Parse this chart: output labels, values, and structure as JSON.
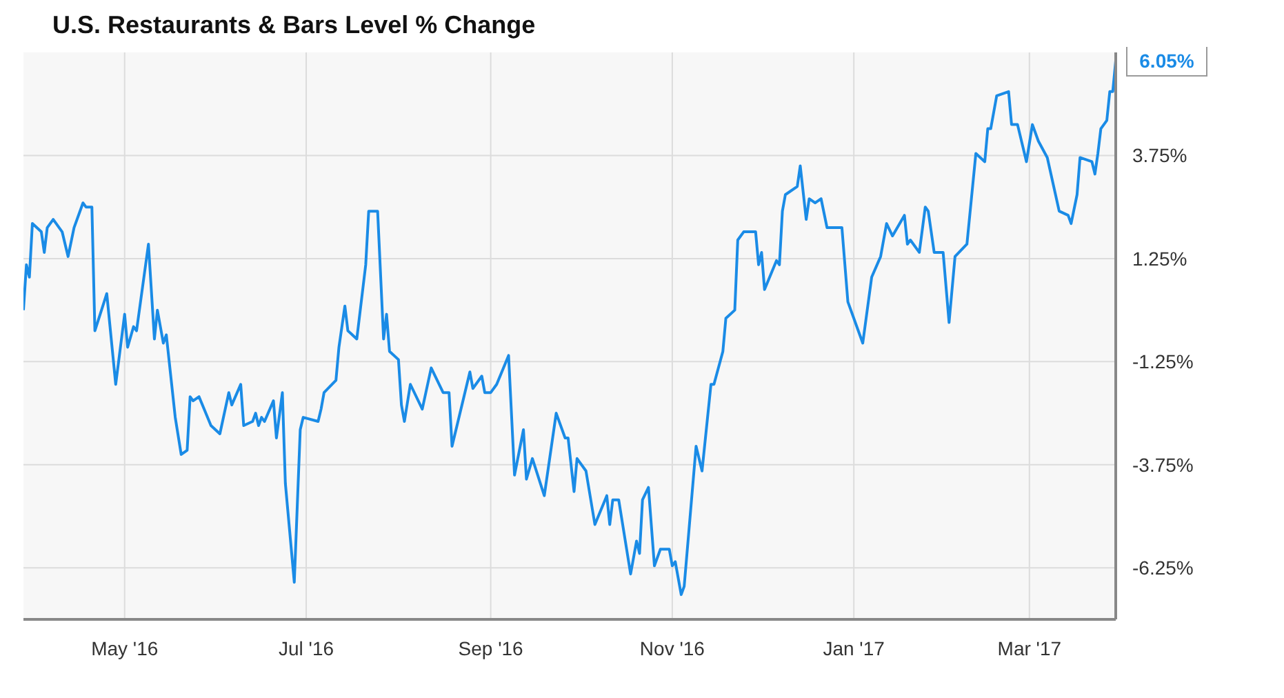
{
  "chart_data": {
    "type": "line",
    "title": "U.S. Restaurants & Bars Level % Change",
    "x": [
      "2016-03-28",
      "2016-03-29",
      "2016-03-30",
      "2016-03-31",
      "2016-04-03",
      "2016-04-04",
      "2016-04-05",
      "2016-04-07",
      "2016-04-10",
      "2016-04-12",
      "2016-04-14",
      "2016-04-17",
      "2016-04-18",
      "2016-04-20",
      "2016-04-21",
      "2016-04-25",
      "2016-04-28",
      "2016-05-01",
      "2016-05-02",
      "2016-05-04",
      "2016-05-05",
      "2016-05-09",
      "2016-05-11",
      "2016-05-12",
      "2016-05-14",
      "2016-05-15",
      "2016-05-18",
      "2016-05-20",
      "2016-05-22",
      "2016-05-23",
      "2016-05-24",
      "2016-05-26",
      "2016-05-30",
      "2016-06-02",
      "2016-06-05",
      "2016-06-06",
      "2016-06-09",
      "2016-06-10",
      "2016-06-13",
      "2016-06-14",
      "2016-06-15",
      "2016-06-16",
      "2016-06-17",
      "2016-06-20",
      "2016-06-21",
      "2016-06-23",
      "2016-06-24",
      "2016-06-27",
      "2016-06-29",
      "2016-06-30",
      "2016-07-05",
      "2016-07-06",
      "2016-07-07",
      "2016-07-11",
      "2016-07-12",
      "2016-07-14",
      "2016-07-15",
      "2016-07-18",
      "2016-07-21",
      "2016-07-22",
      "2016-07-25",
      "2016-07-27",
      "2016-07-28",
      "2016-07-29",
      "2016-08-01",
      "2016-08-02",
      "2016-08-03",
      "2016-08-05",
      "2016-08-09",
      "2016-08-12",
      "2016-08-16",
      "2016-08-18",
      "2016-08-19",
      "2016-08-25",
      "2016-08-26",
      "2016-08-29",
      "2016-08-30",
      "2016-09-01",
      "2016-09-03",
      "2016-09-07",
      "2016-09-09",
      "2016-09-12",
      "2016-09-13",
      "2016-09-15",
      "2016-09-19",
      "2016-09-23",
      "2016-09-26",
      "2016-09-27",
      "2016-09-29",
      "2016-09-30",
      "2016-10-03",
      "2016-10-06",
      "2016-10-10",
      "2016-10-11",
      "2016-10-12",
      "2016-10-14",
      "2016-10-18",
      "2016-10-20",
      "2016-10-21",
      "2016-10-22",
      "2016-10-24",
      "2016-10-26",
      "2016-10-28",
      "2016-10-31",
      "2016-11-01",
      "2016-11-02",
      "2016-11-04",
      "2016-11-05",
      "2016-11-09",
      "2016-11-11",
      "2016-11-14",
      "2016-11-15",
      "2016-11-18",
      "2016-11-19",
      "2016-11-22",
      "2016-11-23",
      "2016-11-25",
      "2016-11-29",
      "2016-11-30",
      "2016-12-01",
      "2016-12-02",
      "2016-12-06",
      "2016-12-07",
      "2016-12-08",
      "2016-12-09",
      "2016-12-13",
      "2016-12-14",
      "2016-12-16",
      "2016-12-17",
      "2016-12-19",
      "2016-12-21",
      "2016-12-23",
      "2016-12-28",
      "2016-12-30",
      "2017-01-04",
      "2017-01-07",
      "2017-01-10",
      "2017-01-12",
      "2017-01-14",
      "2017-01-18",
      "2017-01-19",
      "2017-01-20",
      "2017-01-23",
      "2017-01-25",
      "2017-01-26",
      "2017-01-28",
      "2017-01-31",
      "2017-02-02",
      "2017-02-04",
      "2017-02-08",
      "2017-02-11",
      "2017-02-14",
      "2017-02-15",
      "2017-02-16",
      "2017-02-18",
      "2017-02-22",
      "2017-02-23",
      "2017-02-25",
      "2017-02-28",
      "2017-03-02",
      "2017-03-04",
      "2017-03-07",
      "2017-03-11",
      "2017-03-14",
      "2017-03-15",
      "2017-03-17",
      "2017-03-18",
      "2017-03-22",
      "2017-03-23",
      "2017-03-24",
      "2017-03-25",
      "2017-03-27",
      "2017-03-28",
      "2017-03-29",
      "2017-03-30"
    ],
    "series": [
      {
        "color": "#1a8be6",
        "values": [
          0.0,
          1.1,
          0.8,
          2.1,
          1.9,
          1.4,
          2.0,
          2.2,
          1.9,
          1.3,
          2.0,
          2.6,
          2.5,
          2.5,
          -0.5,
          0.4,
          -1.8,
          -0.1,
          -0.9,
          -0.4,
          -0.5,
          1.6,
          -0.7,
          0.0,
          -0.8,
          -0.6,
          -2.6,
          -3.5,
          -3.4,
          -2.1,
          -2.2,
          -2.1,
          -2.8,
          -3.0,
          -2.0,
          -2.3,
          -1.8,
          -2.8,
          -2.7,
          -2.5,
          -2.8,
          -2.6,
          -2.7,
          -2.2,
          -3.1,
          -2.0,
          -4.2,
          -6.6,
          -2.9,
          -2.6,
          -2.7,
          -2.4,
          -2.0,
          -1.7,
          -0.9,
          0.1,
          -0.5,
          -0.7,
          1.1,
          2.4,
          2.4,
          -0.7,
          -0.1,
          -1.0,
          -1.2,
          -2.3,
          -2.7,
          -1.8,
          -2.4,
          -1.4,
          -2.0,
          -2.0,
          -3.3,
          -1.5,
          -1.9,
          -1.6,
          -2.0,
          -2.0,
          -1.8,
          -1.1,
          -4.0,
          -2.9,
          -4.1,
          -3.6,
          -4.5,
          -2.5,
          -3.1,
          -3.1,
          -4.4,
          -3.6,
          -3.9,
          -5.2,
          -4.5,
          -5.2,
          -4.6,
          -4.6,
          -6.4,
          -5.6,
          -5.9,
          -4.6,
          -4.3,
          -6.2,
          -5.8,
          -5.8,
          -6.2,
          -6.1,
          -6.9,
          -6.7,
          -3.3,
          -3.9,
          -1.8,
          -1.8,
          -1.0,
          -0.2,
          0.0,
          1.7,
          1.9,
          1.9,
          1.1,
          1.4,
          0.5,
          1.2,
          1.1,
          2.4,
          2.8,
          3.0,
          3.5,
          2.2,
          2.7,
          2.6,
          2.7,
          2.0,
          2.0,
          0.2,
          -0.8,
          0.8,
          1.3,
          2.1,
          1.8,
          2.3,
          1.6,
          1.7,
          1.4,
          2.5,
          2.4,
          1.4,
          1.4,
          -0.3,
          1.3,
          1.6,
          3.8,
          3.6,
          4.4,
          4.4,
          5.2,
          5.3,
          4.5,
          4.5,
          3.6,
          4.5,
          4.1,
          3.7,
          2.4,
          2.3,
          2.1,
          2.8,
          3.7,
          3.6,
          3.3,
          3.8,
          4.4,
          4.6,
          5.3,
          5.3,
          6.05
        ]
      }
    ],
    "xlim": [
      "2016-03-28",
      "2017-03-30"
    ],
    "xticks": [
      {
        "value": "2016-05-01",
        "label": "May '16"
      },
      {
        "value": "2016-07-01",
        "label": "Jul '16"
      },
      {
        "value": "2016-09-01",
        "label": "Sep '16"
      },
      {
        "value": "2016-11-01",
        "label": "Nov '16"
      },
      {
        "value": "2017-01-01",
        "label": "Jan '17"
      },
      {
        "value": "2017-03-01",
        "label": "Mar '17"
      }
    ],
    "ylim": [
      -7.5,
      6.25
    ],
    "yticks": [
      {
        "value": -6.25,
        "label": "-6.25%"
      },
      {
        "value": -3.75,
        "label": "-3.75%"
      },
      {
        "value": -1.25,
        "label": "-1.25%"
      },
      {
        "value": 1.25,
        "label": "1.25%"
      },
      {
        "value": 3.75,
        "label": "3.75%"
      }
    ],
    "annotations": [
      {
        "text": "6.05%",
        "x": "2017-03-30",
        "y": 6.05
      }
    ],
    "grid": true,
    "legend": false,
    "marker": "none",
    "line_style": "solid"
  }
}
